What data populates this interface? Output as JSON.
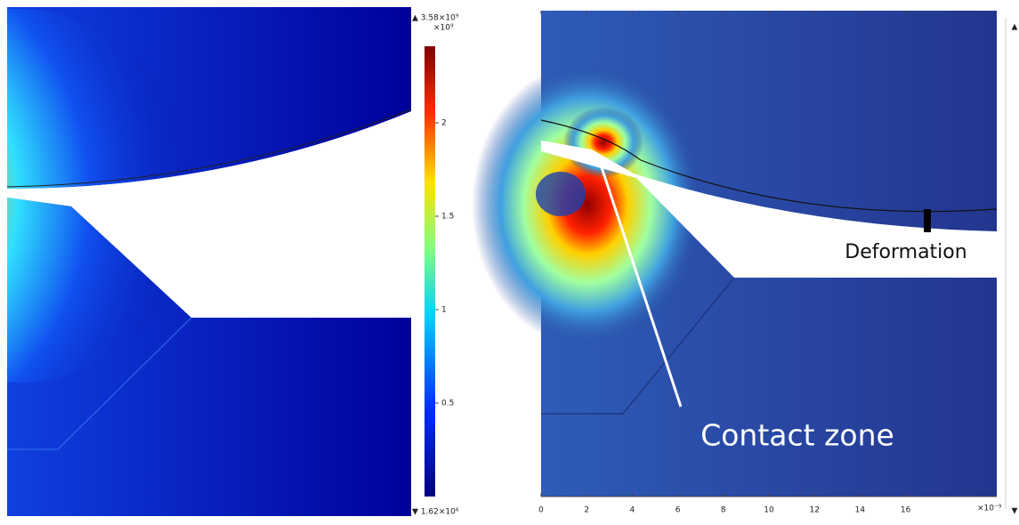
{
  "left_panel": {
    "colorbar": {
      "max_label": "▲ 3.58×10⁹",
      "multiplier": "×10⁹",
      "ticks": [
        2,
        1.5,
        1,
        0.5
      ],
      "min_label": "▼ 1.62×10⁶"
    }
  },
  "right_panel": {
    "x_axis": {
      "ticks": [
        0,
        2,
        4,
        6,
        8,
        10,
        12,
        14,
        16
      ],
      "multiplier": "×10⁻⁹"
    },
    "annotations": {
      "deformation": "Deformation",
      "contact_zone": "Contact zone"
    }
  }
}
